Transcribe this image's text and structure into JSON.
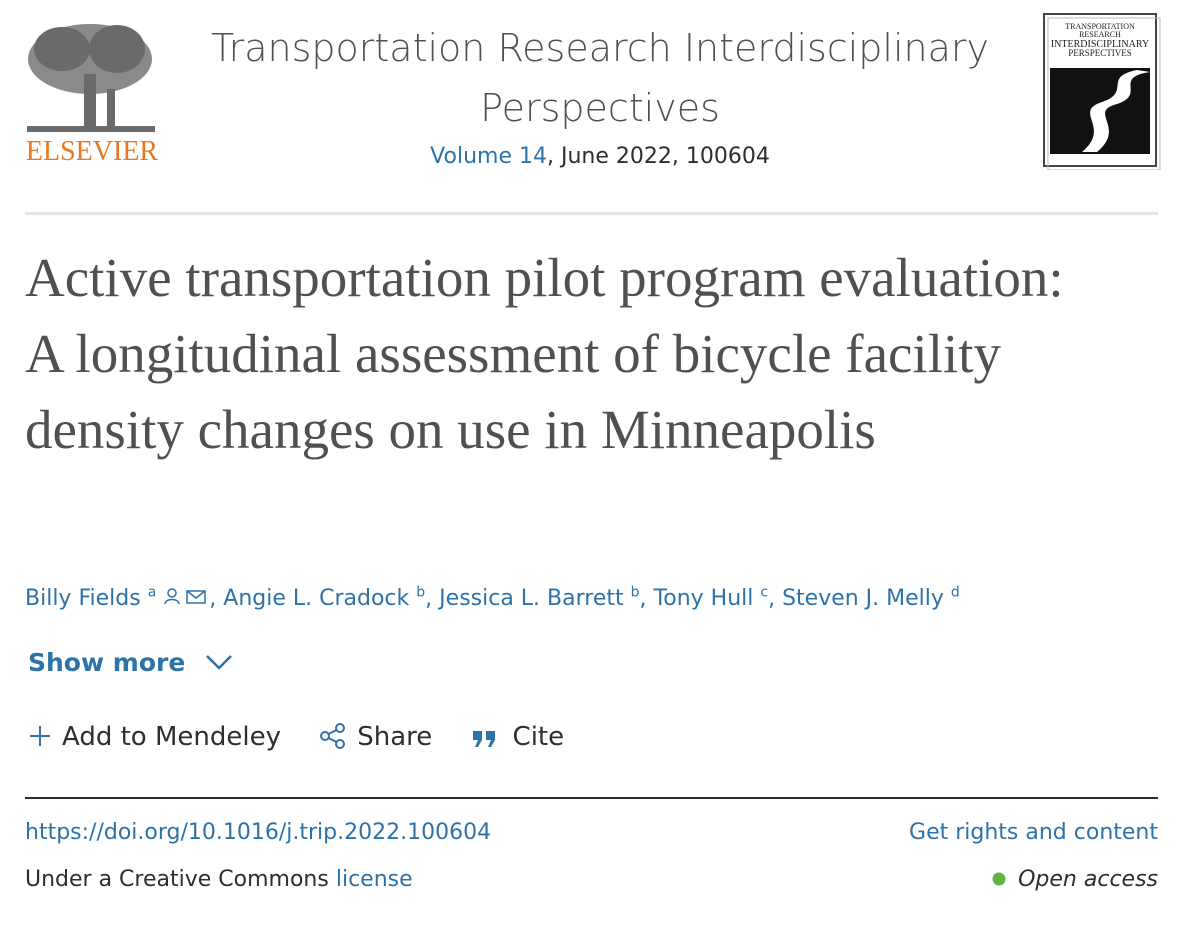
{
  "header": {
    "publisher": "ELSEVIER",
    "journal_title": "Transportation Research Interdisciplinary Perspectives",
    "volume": "Volume 14",
    "issue_info": ", June 2022, 100604",
    "cover": {
      "line1": "TRANSPORTATION",
      "line2": "RESEARCH",
      "line3": "INTERDISCIPLINARY",
      "line4": "PERSPECTIVES"
    }
  },
  "article": {
    "title": "Active transportation pilot program evaluation: A longitudinal assessment of bicycle facility density changes on use in Minneapolis",
    "author_separator": ",",
    "authors": [
      {
        "name": "Billy Fields",
        "affiliation": "a"
      },
      {
        "name": "Angie L. Cradock",
        "affiliation": "b"
      },
      {
        "name": "Jessica L. Barrett",
        "affiliation": "b"
      },
      {
        "name": "Tony Hull",
        "affiliation": "c"
      },
      {
        "name": "Steven J. Melly",
        "affiliation": "d"
      }
    ],
    "show_more": "Show more",
    "actions": {
      "mendeley": "Add to Mendeley",
      "share": "Share",
      "cite": "Cite"
    },
    "doi": "https://doi.org/10.1016/j.trip.2022.100604",
    "rights": "Get rights and content",
    "license_text": "Under a Creative Commons",
    "license_link": "license",
    "access": "Open access"
  }
}
